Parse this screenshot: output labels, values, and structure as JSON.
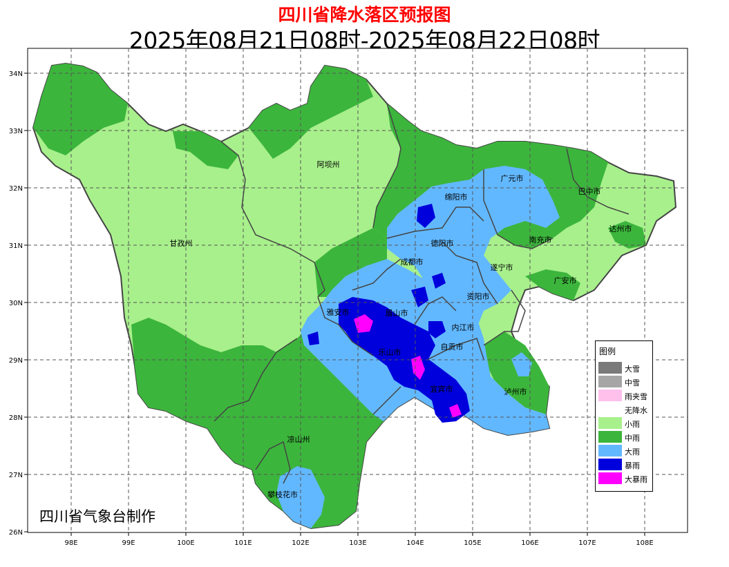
{
  "title": "四川省降水落区预报图",
  "subtitle": "2025年08月21日08时-2025年08月22日08时",
  "credit": "四川省气象台制作",
  "axes": {
    "lon_ticks": [
      "98E",
      "99E",
      "100E",
      "101E",
      "102E",
      "103E",
      "104E",
      "105E",
      "106E",
      "107E",
      "108E"
    ],
    "lat_ticks": [
      "34N",
      "33N",
      "32N",
      "31N",
      "30N",
      "29N",
      "28N",
      "27N",
      "26N"
    ]
  },
  "cities": [
    {
      "name": "阿坝州"
    },
    {
      "name": "甘孜州"
    },
    {
      "name": "广元市"
    },
    {
      "name": "巴中市"
    },
    {
      "name": "绵阳市"
    },
    {
      "name": "达州市"
    },
    {
      "name": "德阳市"
    },
    {
      "name": "南充市"
    },
    {
      "name": "成都市"
    },
    {
      "name": "遂宁市"
    },
    {
      "name": "广安市"
    },
    {
      "name": "资阳市"
    },
    {
      "name": "雅安市"
    },
    {
      "name": "眉山市"
    },
    {
      "name": "内江市"
    },
    {
      "name": "乐山市"
    },
    {
      "name": "自贡市"
    },
    {
      "name": "泸州市"
    },
    {
      "name": "宜宾市"
    },
    {
      "name": "凉山州"
    },
    {
      "name": "攀枝花市"
    }
  ],
  "legend": {
    "title": "图例",
    "items": [
      {
        "label": "大雪",
        "color": "#7a7a7a"
      },
      {
        "label": "中雪",
        "color": "#a6a6a6"
      },
      {
        "label": "雨夹雪",
        "color": "#ffc0ec"
      },
      {
        "label": "无降水",
        "color": "#ffffff"
      },
      {
        "label": "小雨",
        "color": "#a8f08c"
      },
      {
        "label": "中雨",
        "color": "#3cb53c"
      },
      {
        "label": "大雨",
        "color": "#62b8ff"
      },
      {
        "label": "暴雨",
        "color": "#0000dc"
      },
      {
        "label": "大暴雨",
        "color": "#ff00ff"
      }
    ]
  },
  "colors": {
    "light_rain": "#a8f08c",
    "moderate_rain": "#3cb53c",
    "heavy_rain": "#62b8ff",
    "rainstorm": "#0000dc",
    "heavy_rainstorm": "#ff00ff",
    "title": "#ff0000"
  }
}
